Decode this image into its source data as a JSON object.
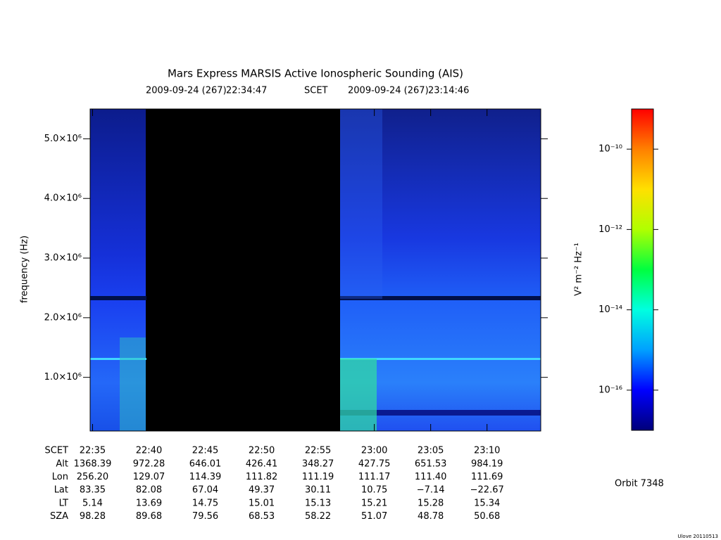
{
  "chart_data": {
    "type": "spectrogram",
    "title": "Mars Express MARSIS Active Ionospheric Sounding (AIS)",
    "start_date": "2009-09-24 (267)",
    "end_date": "2009-09-24 (267)",
    "time_system": "SCET",
    "xlim": [
      "22:34:47",
      "23:14:46"
    ],
    "xticks": [
      "22:35",
      "22:40",
      "22:45",
      "22:50",
      "22:55",
      "23:00",
      "23:05",
      "23:10"
    ],
    "ylabel": "frequency (Hz)",
    "ylim": [
      100000,
      5500000
    ],
    "yticks": [
      {
        "value": 1000000,
        "label": "1.0×10⁶"
      },
      {
        "value": 2000000,
        "label": "2.0×10⁶"
      },
      {
        "value": 3000000,
        "label": "3.0×10⁶"
      },
      {
        "value": 4000000,
        "label": "4.0×10⁶"
      },
      {
        "value": 5000000,
        "label": "5.0×10⁶"
      }
    ],
    "colorbar": {
      "label": "V² m⁻² Hz⁻¹",
      "scale": "log",
      "lim": [
        1e-17,
        1e-09
      ],
      "ticks": [
        {
          "value": 1e-10,
          "label": "10⁻¹⁰"
        },
        {
          "value": 1e-12,
          "label": "10⁻¹²"
        },
        {
          "value": 1e-14,
          "label": "10⁻¹⁴"
        },
        {
          "value": 1e-16,
          "label": "10⁻¹⁶"
        }
      ],
      "colors": [
        "#00007a",
        "#0000ff",
        "#00a0ff",
        "#00ffe0",
        "#00ff40",
        "#b0ff00",
        "#ffe000",
        "#ff8000",
        "#ff0000"
      ]
    }
  },
  "ephemeris": {
    "rows": [
      {
        "label": "Alt",
        "values": [
          "1368.39",
          "972.28",
          "646.01",
          "426.41",
          "348.27",
          "427.75",
          "651.53",
          "984.19"
        ]
      },
      {
        "label": "Lon",
        "values": [
          "256.20",
          "129.07",
          "114.39",
          "111.82",
          "111.19",
          "111.17",
          "111.40",
          "111.69"
        ]
      },
      {
        "label": "Lat",
        "values": [
          "83.35",
          "82.08",
          "67.04",
          "49.37",
          "30.11",
          "10.75",
          "−7.14",
          "−22.67"
        ]
      },
      {
        "label": "LT",
        "values": [
          "5.14",
          "13.69",
          "14.75",
          "15.01",
          "15.13",
          "15.21",
          "15.28",
          "15.34"
        ]
      },
      {
        "label": "SZA",
        "values": [
          "98.28",
          "89.68",
          "79.56",
          "68.53",
          "58.22",
          "51.07",
          "48.78",
          "50.68"
        ]
      }
    ]
  },
  "orbit": "Orbit 7348",
  "footer": "Ulove 20110513"
}
